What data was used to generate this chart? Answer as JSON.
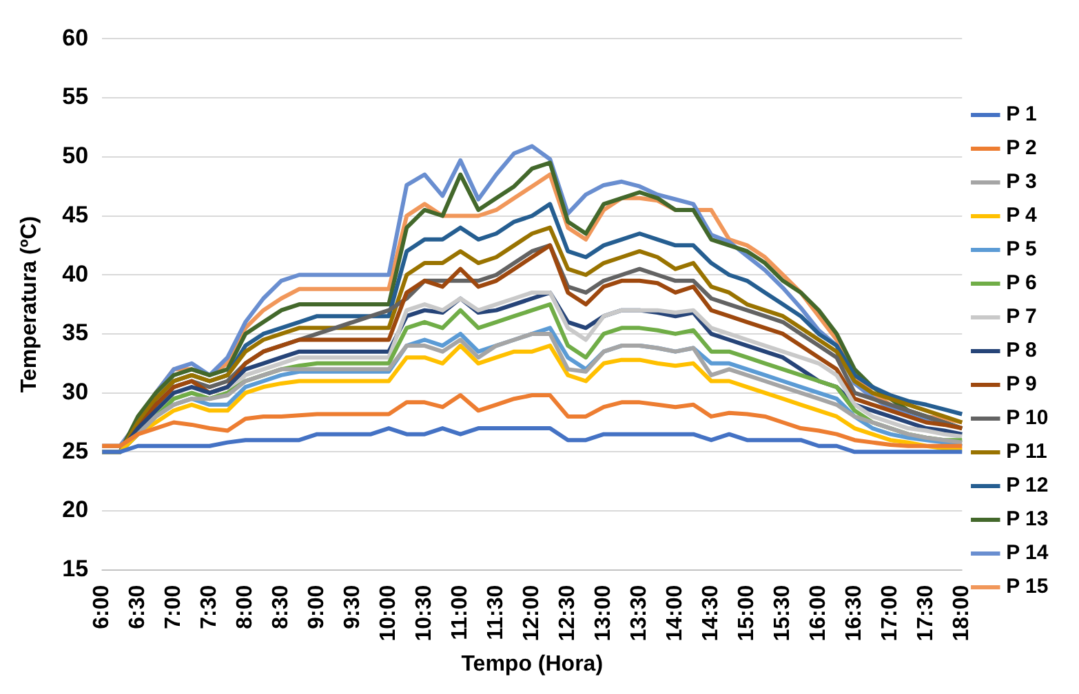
{
  "chart_data": {
    "type": "line",
    "xlabel": "Tempo (Hora)",
    "ylabel": "Temperatura (ºC)",
    "categories": [
      "6:00",
      null,
      "6:30",
      null,
      "7:00",
      null,
      "7:30",
      null,
      "8:00",
      null,
      "8:30",
      null,
      "9:00",
      null,
      "9:30",
      null,
      "10:00",
      null,
      "10:30",
      null,
      "11:00",
      null,
      "11:30",
      null,
      "12:00",
      null,
      "12:30",
      null,
      "13:00",
      null,
      "13:30",
      null,
      "14:00",
      null,
      "14:30",
      null,
      "15:00",
      null,
      "15:30",
      null,
      "16:00",
      null,
      "16:30",
      null,
      "17:00",
      null,
      "17:30",
      null,
      "18:00"
    ],
    "ylim": [
      15,
      60
    ],
    "yticks": [
      15,
      20,
      25,
      30,
      35,
      40,
      45,
      50,
      55,
      60
    ],
    "grid": "y",
    "legend": "right",
    "marker": "none",
    "line_style": "solid",
    "series": [
      {
        "name": "P 1",
        "color": "#4472c4",
        "values": [
          25,
          25,
          25.5,
          25.5,
          25.5,
          25.5,
          25.5,
          25.8,
          26,
          26,
          26,
          26,
          26.5,
          26.5,
          26.5,
          26.5,
          27,
          26.5,
          26.5,
          27,
          26.5,
          27,
          27,
          27,
          27,
          27,
          26,
          26,
          26.5,
          26.5,
          26.5,
          26.5,
          26.5,
          26.5,
          26,
          26.5,
          26,
          26,
          26,
          26,
          25.5,
          25.5,
          25,
          25,
          25,
          25,
          25,
          25,
          25
        ]
      },
      {
        "name": "P 2",
        "color": "#ed7d31",
        "values": [
          25.5,
          25.5,
          26.5,
          27,
          27.5,
          27.3,
          27,
          26.8,
          27.8,
          28,
          28,
          28.1,
          28.2,
          28.2,
          28.2,
          28.2,
          28.2,
          29.2,
          29.2,
          28.8,
          29.8,
          28.5,
          29,
          29.5,
          29.8,
          29.8,
          28,
          28,
          28.8,
          29.2,
          29.2,
          29,
          28.8,
          29,
          28,
          28.3,
          28.2,
          28,
          27.5,
          27,
          26.8,
          26.5,
          26,
          25.8,
          25.6,
          25.5,
          25.5,
          25.5,
          25.5
        ]
      },
      {
        "name": "P 3",
        "color": "#a5a5a5",
        "values": [
          25.5,
          25.5,
          26.5,
          28,
          29,
          29.5,
          29.5,
          29.8,
          31,
          31.5,
          32,
          32,
          32,
          32,
          32,
          32,
          32,
          34,
          34,
          33.5,
          34.5,
          33,
          34,
          34.5,
          35,
          35,
          32,
          31.8,
          33.5,
          34,
          34,
          33.8,
          33.5,
          33.8,
          31.5,
          32,
          31.5,
          31,
          30.5,
          30,
          29.5,
          29,
          28,
          27.5,
          27,
          26.5,
          26.2,
          26,
          25.8
        ]
      },
      {
        "name": "P 4",
        "color": "#ffc000",
        "values": [
          25,
          25,
          26.5,
          27.5,
          28.5,
          29,
          28.5,
          28.5,
          30,
          30.5,
          30.8,
          31,
          31,
          31,
          31,
          31,
          31,
          33,
          33,
          32.5,
          34,
          32.5,
          33,
          33.5,
          33.5,
          34,
          31.5,
          31,
          32.5,
          32.8,
          32.8,
          32.5,
          32.3,
          32.5,
          31,
          31,
          30.5,
          30,
          29.5,
          29,
          28.5,
          28,
          27,
          26.5,
          26,
          25.8,
          25.5,
          25.3,
          25.2
        ]
      },
      {
        "name": "P 5",
        "color": "#5b9bd5",
        "values": [
          25,
          25,
          26.5,
          28,
          29,
          29.5,
          29,
          29,
          30.5,
          31,
          31.5,
          31.8,
          31.8,
          31.8,
          31.8,
          31.8,
          31.8,
          34,
          34.5,
          34,
          35,
          33.5,
          34,
          34.5,
          35,
          35.5,
          33,
          32,
          33.5,
          34,
          34,
          33.8,
          33.5,
          33.8,
          32.5,
          32.5,
          32,
          31.5,
          31,
          30.5,
          30,
          29.5,
          28,
          27,
          26.5,
          26.2,
          26,
          25.8,
          25.5
        ]
      },
      {
        "name": "P 6",
        "color": "#70ad47",
        "values": [
          25,
          25,
          26.5,
          28,
          29.5,
          30,
          29.5,
          30,
          31,
          31.5,
          32,
          32.3,
          32.5,
          32.5,
          32.5,
          32.5,
          32.5,
          35.5,
          36,
          35.5,
          37,
          35.5,
          36,
          36.5,
          37,
          37.5,
          34,
          33,
          35,
          35.5,
          35.5,
          35.3,
          35,
          35.3,
          33.5,
          33.5,
          33,
          32.5,
          32,
          31.5,
          31,
          30.5,
          28.5,
          27.5,
          27,
          26.5,
          26.2,
          26,
          26
        ]
      },
      {
        "name": "P 7",
        "color": "#c9c9c9",
        "values": [
          25,
          25,
          26.5,
          28,
          29.5,
          30,
          29.5,
          30,
          31.5,
          32,
          32.5,
          33,
          33,
          33,
          33,
          33,
          33,
          37,
          37.5,
          37,
          38,
          37,
          37.5,
          38,
          38.5,
          38.5,
          35.5,
          34.5,
          36.5,
          37,
          37,
          37,
          36.8,
          37,
          35.5,
          35,
          34.5,
          34,
          33.5,
          33,
          32.5,
          31.5,
          29,
          28,
          27.5,
          27,
          26.8,
          26.5,
          26.3
        ]
      },
      {
        "name": "P 8",
        "color": "#264478",
        "values": [
          25,
          25,
          27,
          28.5,
          30,
          30.5,
          30,
          30.5,
          32,
          32.5,
          33,
          33.5,
          33.5,
          33.5,
          33.5,
          33.5,
          33.5,
          36.5,
          37,
          36.8,
          38,
          36.8,
          37,
          37.5,
          38,
          38.5,
          36,
          35.5,
          36.5,
          37,
          37,
          36.8,
          36.5,
          36.8,
          35,
          34.5,
          34,
          33.5,
          33,
          32,
          31,
          30.5,
          29,
          28.5,
          28,
          27.5,
          27,
          26.8,
          26.5
        ]
      },
      {
        "name": "P 9",
        "color": "#9e480e",
        "values": [
          25,
          25,
          27,
          29,
          30.5,
          31,
          30,
          30.5,
          32.5,
          33.5,
          34,
          34.5,
          34.5,
          34.5,
          34.5,
          34.5,
          34.5,
          38.5,
          39.5,
          39,
          40.5,
          39,
          39.5,
          40.5,
          41.5,
          42.5,
          38.5,
          37.5,
          39,
          39.5,
          39.5,
          39.3,
          38.5,
          39,
          37,
          36.5,
          36,
          35.5,
          35,
          34,
          33,
          32,
          29.5,
          29,
          28.5,
          28,
          27.5,
          27.3,
          27
        ]
      },
      {
        "name": "P 10",
        "color": "#636363",
        "values": [
          25,
          25,
          27,
          29,
          30.5,
          31,
          30.5,
          31,
          32.5,
          33.5,
          34,
          34.5,
          35,
          35.5,
          36,
          36.5,
          37,
          38,
          39.5,
          39.5,
          39.5,
          39.5,
          40,
          41,
          42,
          42.5,
          39,
          38.5,
          39.5,
          40,
          40.5,
          40,
          39.5,
          39.5,
          38,
          37.5,
          37,
          36.5,
          36,
          35,
          34,
          33,
          30,
          29.5,
          29,
          28.5,
          28,
          27.5,
          27
        ]
      },
      {
        "name": "P 11",
        "color": "#997300",
        "values": [
          25,
          25,
          27.5,
          29.5,
          31,
          31.5,
          31,
          31.5,
          33.5,
          34.5,
          35,
          35.5,
          35.5,
          35.5,
          35.5,
          35.5,
          35.5,
          40,
          41,
          41,
          42,
          41,
          41.5,
          42.5,
          43.5,
          44,
          40.5,
          40,
          41,
          41.5,
          42,
          41.5,
          40.5,
          41,
          39,
          38.5,
          37.5,
          37,
          36.5,
          35.5,
          34.5,
          33.5,
          31,
          30,
          29.5,
          29,
          28.5,
          28,
          27.5
        ]
      },
      {
        "name": "P 12",
        "color": "#255e91",
        "values": [
          25,
          25,
          27.5,
          29.5,
          31,
          31.5,
          31,
          31.5,
          34,
          35,
          35.5,
          36,
          36.5,
          36.5,
          36.5,
          36.5,
          36.5,
          42,
          43,
          43,
          44,
          43,
          43.5,
          44.5,
          45,
          46,
          42,
          41.5,
          42.5,
          43,
          43.5,
          43,
          42.5,
          42.5,
          41,
          40,
          39.5,
          38.5,
          37.5,
          36.5,
          35,
          34,
          31.5,
          30.5,
          29.8,
          29.3,
          29,
          28.6,
          28.2
        ]
      },
      {
        "name": "P 13",
        "color": "#43682b",
        "values": [
          25,
          25,
          28,
          30,
          31.5,
          32,
          31.5,
          32,
          35,
          36,
          37,
          37.5,
          37.5,
          37.5,
          37.5,
          37.5,
          37.5,
          44,
          45.5,
          45,
          48.5,
          45.5,
          46.5,
          47.5,
          49,
          49.5,
          44.5,
          43.5,
          46,
          46.5,
          47,
          46.5,
          45.5,
          45.5,
          43,
          42.5,
          42,
          41,
          39.5,
          38.5,
          37,
          35,
          32,
          30.5,
          29.5,
          28.5,
          28,
          27.5,
          27
        ]
      },
      {
        "name": "P 14",
        "color": "#698ed0",
        "values": [
          25.5,
          25.5,
          27.5,
          30,
          32,
          32.5,
          31.5,
          33,
          36,
          38,
          39.5,
          40,
          40,
          40,
          40,
          40,
          40,
          47.6,
          48.5,
          46.7,
          49.7,
          46.4,
          48.5,
          50.3,
          50.9,
          49.8,
          45.2,
          46.8,
          47.6,
          47.9,
          47.5,
          46.8,
          46.4,
          46,
          43.4,
          42.8,
          41.6,
          40.4,
          38.9,
          37.2,
          35.3,
          34,
          30.8,
          29.6,
          28.7,
          28.2,
          27.8,
          27.5,
          27
        ]
      },
      {
        "name": "P 15",
        "color": "#f1975a",
        "values": [
          25.5,
          25.5,
          27.5,
          30,
          32,
          32,
          31.5,
          32.5,
          35.5,
          37,
          38,
          38.8,
          38.8,
          38.8,
          38.8,
          38.8,
          38.8,
          45,
          46,
          45,
          45,
          45,
          45.5,
          46.5,
          47.5,
          48.5,
          44,
          43,
          45.5,
          46.5,
          46.5,
          46.3,
          45.5,
          45.5,
          45.5,
          43,
          42.5,
          41.5,
          40,
          38.5,
          36.5,
          34.5,
          31.5,
          30,
          29,
          28.5,
          28,
          27.8,
          27.5
        ]
      }
    ]
  }
}
